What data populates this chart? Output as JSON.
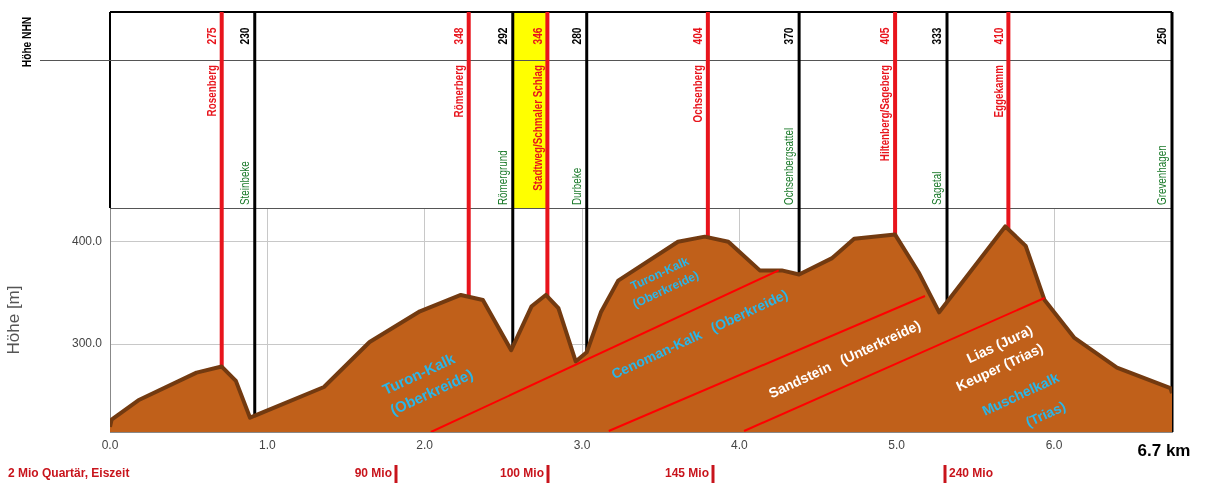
{
  "chart_data": {
    "type": "area",
    "ylabel": "Höhe [m]",
    "xlabel": "6.7 km",
    "xlim": [
      0,
      6.75
    ],
    "ylim": [
      214,
      433
    ],
    "xticks": [
      {
        "value": 0,
        "label": "0.0"
      },
      {
        "value": 1,
        "label": "1.0"
      },
      {
        "value": 2,
        "label": "2.0"
      },
      {
        "value": 3,
        "label": "3.0"
      },
      {
        "value": 4,
        "label": "4.0"
      },
      {
        "value": 5,
        "label": "5.0"
      },
      {
        "value": 6,
        "label": "6.0"
      }
    ],
    "yticks": [
      {
        "value": 300,
        "label": "300.0"
      },
      {
        "value": 400,
        "label": "400.0"
      }
    ],
    "grid": true,
    "legend": false,
    "series": [
      {
        "color": "#c0601a",
        "x": [
          0,
          0.01,
          0.18,
          0.55,
          0.71,
          0.8,
          0.89,
          1.36,
          1.65,
          1.97,
          2.23,
          2.37,
          2.55,
          2.68,
          2.77,
          2.85,
          2.96,
          3.03,
          3.12,
          3.23,
          3.61,
          3.78,
          3.93,
          4.13,
          4.27,
          4.38,
          4.59,
          4.73,
          4.99,
          5.14,
          5.27,
          5.69,
          5.82,
          5.94,
          6.13,
          6.4,
          6.74,
          6.75
        ],
        "values": [
          219,
          226,
          245,
          272,
          278,
          264,
          228,
          258,
          302,
          332,
          348,
          343,
          294,
          337,
          348,
          335,
          283,
          292,
          331,
          362,
          400,
          405,
          400,
          372,
          372,
          368,
          384,
          403,
          407,
          370,
          331,
          415,
          396,
          343,
          306,
          277,
          257,
          252
        ]
      },
      {
        "type": "line",
        "color": "#ff0000",
        "x": [
          2.04,
          4.25
        ],
        "values": [
          214,
          372
        ]
      },
      {
        "type": "line",
        "color": "#ff0000",
        "x": [
          3.17,
          5.18
        ],
        "values": [
          215,
          347
        ]
      },
      {
        "type": "line",
        "color": "#ff0000",
        "x": [
          4.03,
          5.94
        ],
        "values": [
          215,
          345
        ]
      }
    ],
    "ref_lines": [
      {
        "axis": "x",
        "value": 0.71,
        "label": "Rosenberg",
        "color": "#e8141c"
      },
      {
        "axis": "x",
        "value": 0.92,
        "label": "Steinbeke",
        "color": "#000000"
      },
      {
        "axis": "x",
        "value": 2.28,
        "label": "Römerberg",
        "color": "#e8141c"
      },
      {
        "axis": "x",
        "value": 2.56,
        "label": "Römergrund",
        "color": "#000000"
      },
      {
        "axis": "x",
        "value": 2.78,
        "label": "Stadtweg/Schmaler Schlag",
        "color": "#e8141c"
      },
      {
        "axis": "x",
        "value": 3.03,
        "label": "Durbeke",
        "color": "#000000"
      },
      {
        "axis": "x",
        "value": 3.8,
        "label": "Ochsenberg",
        "color": "#e8141c"
      },
      {
        "axis": "x",
        "value": 4.38,
        "label": "Ochsenbergsattel",
        "color": "#000000"
      },
      {
        "axis": "x",
        "value": 4.99,
        "label": "Hiltenberg/Sageberg",
        "color": "#e8141c"
      },
      {
        "axis": "x",
        "value": 5.32,
        "label": "Sagetal",
        "color": "#000000"
      },
      {
        "axis": "x",
        "value": 5.71,
        "label": "Eggekamm",
        "color": "#e8141c"
      },
      {
        "axis": "x",
        "value": 6.75,
        "label": "Grevenhagen",
        "color": "#000000"
      }
    ],
    "annotations": [
      "Höhe NHN",
      "2 Mio Quartär, Eiszeit",
      "Turon-Kalk",
      "(Oberkreide)",
      "Turon-Kalk",
      "(Oberkreide)",
      "Cenoman-Kalk   (Oberkreide)",
      "Sandstein   (Unterkreide)",
      "Lias (Jura)",
      "Keuper (Trias)",
      "Muschelkalk",
      "(Trias)",
      "90 Mio",
      "100 Mio",
      "145 Mio",
      "240 Mio",
      {
        "text": "275",
        "x": 0.71
      },
      {
        "text": "230",
        "x": 0.92
      },
      {
        "text": "348",
        "x": 2.28
      },
      {
        "text": "292",
        "x": 2.56
      },
      {
        "text": "346",
        "x": 2.78
      },
      {
        "text": "280",
        "x": 3.03
      },
      {
        "text": "404",
        "x": 3.8
      },
      {
        "text": "370",
        "x": 4.38
      },
      {
        "text": "405",
        "x": 4.99
      },
      {
        "text": "333",
        "x": 5.32
      },
      {
        "text": "410",
        "x": 5.71
      },
      {
        "text": "250",
        "x": 6.75
      }
    ]
  }
}
